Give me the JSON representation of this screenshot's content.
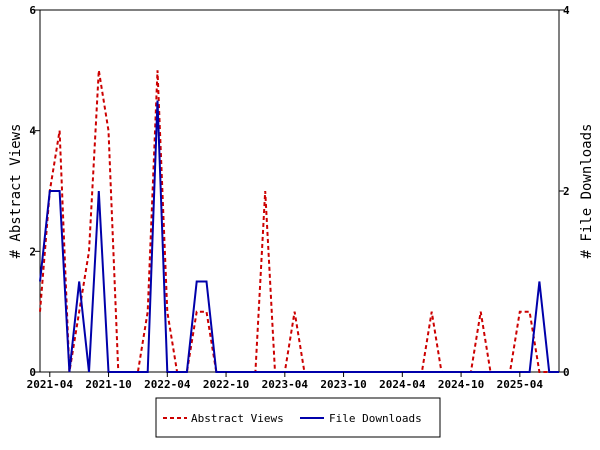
{
  "chart_data": {
    "type": "line",
    "x": [
      "2021-03",
      "2021-04",
      "2021-05",
      "2021-06",
      "2021-07",
      "2021-08",
      "2021-09",
      "2021-10",
      "2021-11",
      "2021-12",
      "2022-01",
      "2022-02",
      "2022-03",
      "2022-04",
      "2022-05",
      "2022-06",
      "2022-07",
      "2022-08",
      "2022-09",
      "2022-10",
      "2022-11",
      "2022-12",
      "2023-01",
      "2023-02",
      "2023-03",
      "2023-04",
      "2023-05",
      "2023-06",
      "2023-07",
      "2023-08",
      "2023-09",
      "2023-10",
      "2023-11",
      "2023-12",
      "2024-01",
      "2024-02",
      "2024-03",
      "2024-04",
      "2024-05",
      "2024-06",
      "2024-07",
      "2024-08",
      "2024-09",
      "2024-10",
      "2024-11",
      "2024-12",
      "2025-01",
      "2025-02",
      "2025-03",
      "2025-04",
      "2025-05",
      "2025-06",
      "2025-07",
      "2025-08"
    ],
    "x_tick_labels": [
      "2021-04",
      "2021-10",
      "2022-04",
      "2022-10",
      "2023-04",
      "2023-10",
      "2024-04",
      "2024-10",
      "2025-04"
    ],
    "series": [
      {
        "name": "Abstract Views",
        "axis": "left",
        "color": "#cc0000",
        "style": "dashed",
        "values": [
          1,
          3,
          4,
          0,
          1,
          2,
          5,
          4,
          0,
          0,
          0,
          1,
          5,
          1,
          0,
          0,
          1,
          1,
          0,
          0,
          0,
          0,
          0,
          3,
          0,
          0,
          1,
          0,
          0,
          0,
          0,
          0,
          0,
          0,
          0,
          0,
          0,
          0,
          0,
          0,
          1,
          0,
          0,
          0,
          0,
          1,
          0,
          0,
          0,
          1,
          1,
          0,
          0,
          0
        ]
      },
      {
        "name": "File Downloads",
        "axis": "right",
        "color": "#0000aa",
        "style": "solid",
        "values": [
          1,
          2,
          2,
          0,
          1,
          0,
          2,
          0,
          0,
          0,
          0,
          0,
          3,
          0,
          0,
          0,
          1,
          1,
          0,
          0,
          0,
          0,
          0,
          0,
          0,
          0,
          0,
          0,
          0,
          0,
          0,
          0,
          0,
          0,
          0,
          0,
          0,
          0,
          0,
          0,
          0,
          0,
          0,
          0,
          0,
          0,
          0,
          0,
          0,
          0,
          0,
          1,
          0,
          0
        ]
      }
    ],
    "y_left": {
      "label": "# Abstract Views",
      "range": [
        0,
        6
      ],
      "ticks": [
        "0",
        "2",
        "4",
        "6"
      ]
    },
    "y_right": {
      "label": "# File Downloads",
      "range": [
        0,
        4
      ],
      "ticks": [
        "0",
        "2",
        "4"
      ]
    },
    "grid": false,
    "legend_position": "bottom-center"
  }
}
